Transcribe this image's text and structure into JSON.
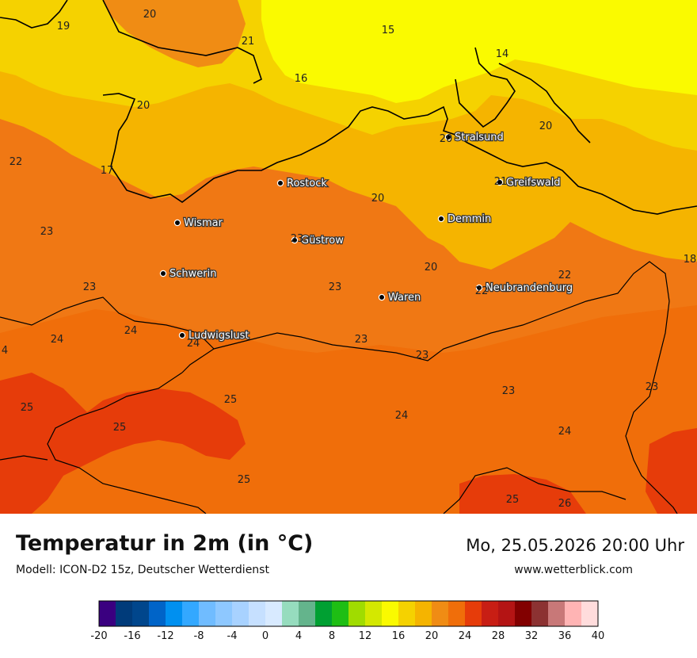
{
  "header": {
    "title": "Temperatur in 2m (in °C)",
    "model": "Modell: ICON-D2 15z, Deutscher Wetterdienst",
    "datetime": "Mo, 25.05.2026 20:00 Uhr",
    "website": "www.wetterblick.com"
  },
  "cities": [
    {
      "name": "Stralsund"
    },
    {
      "name": "Greifswald"
    },
    {
      "name": "Rostock"
    },
    {
      "name": "Demmin"
    },
    {
      "name": "Wismar"
    },
    {
      "name": "Güstrow"
    },
    {
      "name": "Schwerin"
    },
    {
      "name": "Neubrandenburg"
    },
    {
      "name": "Waren"
    },
    {
      "name": "Ludwigslust"
    }
  ],
  "isotherm_labels": [
    "20",
    "19",
    "21",
    "15",
    "14",
    "16",
    "20",
    "20",
    "22",
    "17",
    "20",
    "21",
    "23",
    "23",
    "20",
    "20",
    "22",
    "18",
    "23",
    "23",
    "22",
    "24",
    "24",
    "24",
    "4",
    "23",
    "23",
    "23",
    "25",
    "25",
    "25",
    "24",
    "23",
    "24",
    "25",
    "25",
    "26"
  ],
  "legend": {
    "ticks": [
      "-20",
      "-16",
      "-12",
      "-8",
      "-4",
      "0",
      "4",
      "8",
      "12",
      "16",
      "20",
      "24",
      "28",
      "32",
      "36",
      "40"
    ],
    "colors": [
      "#3a0080",
      "#003b7a",
      "#00468c",
      "#0064c8",
      "#0090f0",
      "#33a8ff",
      "#70bcff",
      "#8ec8ff",
      "#a8d2ff",
      "#c6e0ff",
      "#d8eaff",
      "#96dcbe",
      "#64b48c",
      "#00a032",
      "#1ebe14",
      "#a0dc00",
      "#d4e800",
      "#fafa00",
      "#f5d200",
      "#f5b400",
      "#f08c14",
      "#f06e0a",
      "#e63c0a",
      "#c81e14",
      "#b41414",
      "#820000",
      "#8c3232",
      "#c87878",
      "#ffb4b4",
      "#ffdcdc"
    ]
  }
}
